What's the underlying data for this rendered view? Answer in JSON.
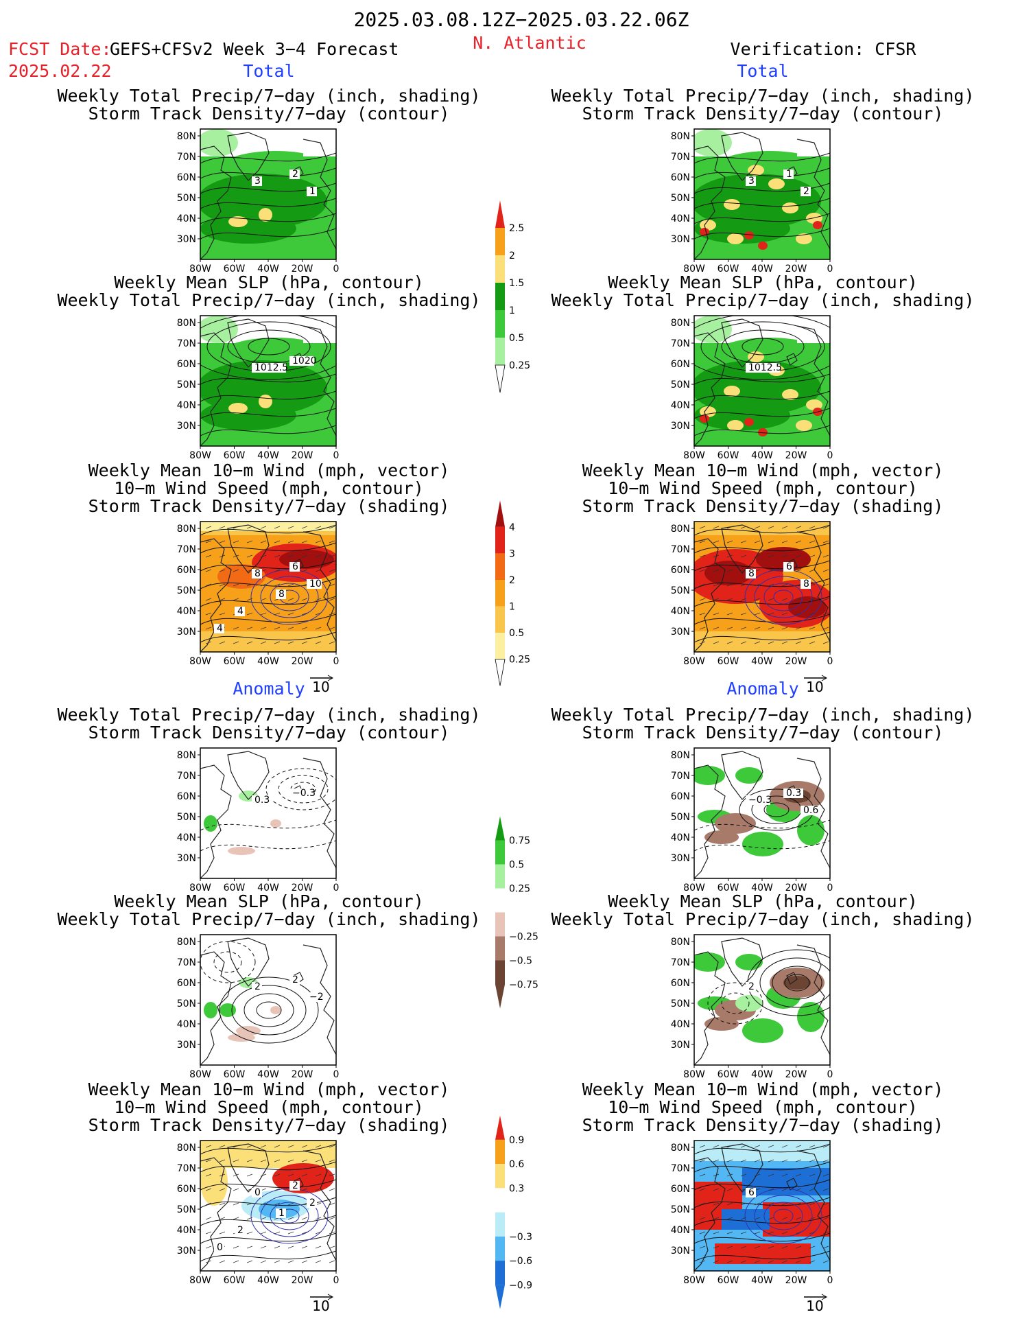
{
  "header": {
    "period": "2025.03.08.12Z−2025.03.22.06Z",
    "fcst_label": "FCST Date:",
    "fcst_date": "2025.02.22",
    "model": "GEFS+CFSv2 Week 3−4 Forecast",
    "region": "N. Atlantic",
    "verification": "Verification: CFSR"
  },
  "sections": {
    "total": "Total",
    "anomaly": "Anomaly"
  },
  "panel_titles": {
    "precip_storm": [
      "Weekly Total Precip/7−day (inch, shading)",
      "Storm Track Density/7−day (contour)"
    ],
    "slp_precip": [
      "Weekly Mean SLP (hPa, contour)",
      "Weekly Total Precip/7−day (inch, shading)"
    ],
    "wind_storm": [
      "Weekly Mean 10−m Wind (mph, vector)",
      "10−m Wind Speed (mph, contour)",
      "Storm Track Density/7−day (shading)"
    ]
  },
  "axes": {
    "lon_ticks": [
      "80W",
      "60W",
      "40W",
      "20W",
      "0"
    ],
    "lat_ticks": [
      "80N",
      "70N",
      "60N",
      "50N",
      "40N",
      "30N"
    ]
  },
  "vector_reference": "10",
  "colorbars": [
    {
      "name": "total-precip",
      "labels": [
        "2.5",
        "2",
        "1.5",
        "1",
        "0.5",
        "0.25"
      ],
      "colors": [
        "#e2231a",
        "#f7a11a",
        "#fbe07a",
        "#159b13",
        "#3ec93a",
        "#a6f0a0"
      ]
    },
    {
      "name": "total-storm",
      "labels": [
        "4",
        "3",
        "2",
        "1",
        "0.5",
        "0.25"
      ],
      "colors": [
        "#a10f0f",
        "#e2231a",
        "#f26a14",
        "#f7a11a",
        "#f9c54a",
        "#fcf0a0"
      ]
    },
    {
      "name": "anom-precip",
      "labels": [
        "0.75",
        "0.5",
        "0.25",
        "−0.25",
        "−0.5",
        "−0.75"
      ],
      "colors": [
        "#159b13",
        "#3ec93a",
        "#a6f0a0",
        "#ffffff",
        "#e8c4b8",
        "#a87a6a",
        "#6b4434"
      ]
    },
    {
      "name": "anom-storm",
      "labels": [
        "0.9",
        "0.6",
        "0.3",
        "−0.3",
        "−0.6",
        "−0.9"
      ],
      "colors": [
        "#e2231a",
        "#f7a11a",
        "#fbe07a",
        "#ffffff",
        "#b9ecf7",
        "#52b7f2",
        "#1d6fd6"
      ]
    }
  ],
  "contour_labels": {
    "tl1": [
      "3",
      "2",
      "1"
    ],
    "tr1": [
      "3",
      "1",
      "2"
    ],
    "tl2": [
      "1012.5",
      "1020"
    ],
    "tr2": [
      "1012.5"
    ],
    "tl3": [
      "8",
      "6",
      "10",
      "4",
      "8",
      "4"
    ],
    "tr3": [
      "8",
      "6",
      "8"
    ],
    "tl4": [
      "0.3",
      "−0.3"
    ],
    "tr4": [
      "−0.3",
      "0.3",
      "0.6"
    ],
    "tl5": [
      "2",
      "2",
      "−2"
    ],
    "tr5": [
      "2"
    ],
    "tl6": [
      "0",
      "2",
      "2",
      "2",
      "1",
      "0"
    ],
    "tr6": [
      "6"
    ]
  }
}
